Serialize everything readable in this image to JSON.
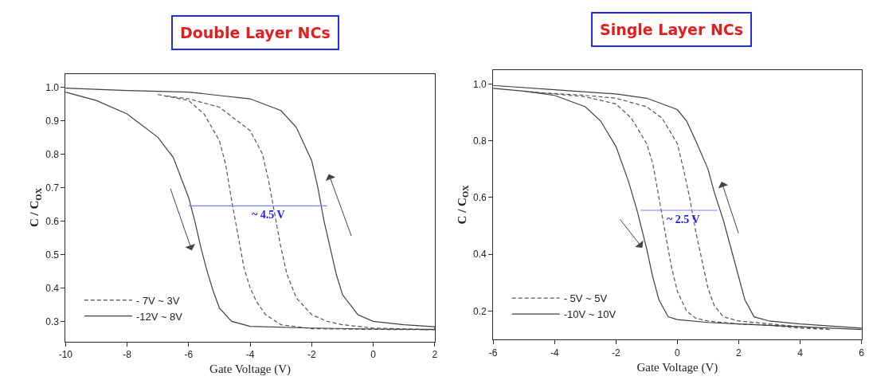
{
  "chart_data": [
    {
      "type": "line",
      "title": "Double Layer NCs",
      "xlabel": "Gate Voltage (V)",
      "ylabel": "C / C$_{OX}$",
      "xlim": [
        -10,
        2
      ],
      "xticks": [
        -10,
        -8,
        -6,
        -4,
        -2,
        0,
        2
      ],
      "ylim": [
        0.24,
        1.04
      ],
      "yticks": [
        {
          "value": 0.3,
          "label": "0.3"
        },
        {
          "value": 0.4,
          "label": "0.4"
        },
        {
          "value": 0.5,
          "label": "0.5"
        },
        {
          "value": 0.6,
          "label": "0.6"
        },
        {
          "value": 0.7,
          "label": "0.7"
        },
        {
          "value": 0.8,
          "label": "0.8"
        },
        {
          "value": 0.9,
          "label": "0.9"
        },
        {
          "value": 1.0,
          "label": "1.0"
        }
      ],
      "legend": "bottom left",
      "series": [
        {
          "name": "- 7V ~ 3V",
          "color": "#555555",
          "line_style": "dashed",
          "x": [
            -7,
            -6,
            -5.5,
            -5,
            -4.8,
            -4.6,
            -4.4,
            -4.2,
            -4,
            -3.8,
            -3.5,
            -3,
            -2,
            0,
            2,
            0,
            -1,
            -1.5,
            -2,
            -2.5,
            -2.8,
            -3,
            -3.2,
            -3.4,
            -3.6,
            -4,
            -5,
            -6,
            -6.8
          ],
          "values": [
            0.978,
            0.96,
            0.92,
            0.84,
            0.77,
            0.66,
            0.56,
            0.46,
            0.4,
            0.36,
            0.32,
            0.29,
            0.278,
            0.276,
            0.275,
            0.28,
            0.29,
            0.3,
            0.32,
            0.37,
            0.44,
            0.52,
            0.62,
            0.72,
            0.8,
            0.87,
            0.94,
            0.965,
            0.975
          ]
        },
        {
          "name": "-12V ~ 8V",
          "color": "#404040",
          "line_style": "solid",
          "x": [
            -10,
            -9,
            -8,
            -7,
            -6.5,
            -6,
            -5.8,
            -5.6,
            -5.4,
            -5.2,
            -5,
            -4.6,
            -4,
            -2,
            0,
            2,
            2,
            1,
            0,
            -0.5,
            -1,
            -1.2,
            -1.4,
            -1.6,
            -1.8,
            -2,
            -2.5,
            -3,
            -4,
            -6,
            -8,
            -10
          ],
          "values": [
            0.985,
            0.96,
            0.92,
            0.85,
            0.79,
            0.67,
            0.6,
            0.52,
            0.45,
            0.39,
            0.34,
            0.3,
            0.285,
            0.28,
            0.277,
            0.276,
            0.284,
            0.29,
            0.3,
            0.32,
            0.38,
            0.44,
            0.52,
            0.6,
            0.7,
            0.78,
            0.88,
            0.93,
            0.965,
            0.985,
            0.99,
            0.997
          ]
        },
        {
          "color": "#8080ff",
          "line_style": "solid",
          "x": [
            -6,
            -1.5
          ],
          "values": [
            0.645,
            0.645
          ]
        }
      ],
      "annotations": [
        {
          "text": "~ 4.5 V",
          "x": -3.4,
          "y": 0.645
        }
      ]
    },
    {
      "type": "line",
      "title": "Single Layer NCs",
      "xlabel": "Gate Voltage (V)",
      "ylabel": "C / C$_{OX}$",
      "xlim": [
        -6,
        6
      ],
      "xticks": [
        -6,
        -4,
        -2,
        0,
        2,
        4,
        6
      ],
      "ylim": [
        0.1,
        1.05
      ],
      "yticks": [
        {
          "value": 0.2,
          "label": "0.2"
        },
        {
          "value": 0.4,
          "label": "0.4"
        },
        {
          "value": 0.6,
          "label": "0.6"
        },
        {
          "value": 0.8,
          "label": "0.8"
        },
        {
          "value": 1.0,
          "label": "1.0"
        }
      ],
      "legend": "bottom left",
      "series": [
        {
          "name": "- 5V ~ 5V",
          "color": "#555555",
          "line_style": "dashed",
          "x": [
            -5,
            -3,
            -2,
            -1.5,
            -1,
            -0.8,
            -0.6,
            -0.4,
            -0.2,
            0,
            0.3,
            0.6,
            1,
            2,
            3,
            4,
            5,
            4,
            3,
            2,
            1.5,
            1.2,
            1,
            0.8,
            0.6,
            0.4,
            0.2,
            0,
            -0.5,
            -1,
            -2,
            -3,
            -4.8
          ],
          "values": [
            0.975,
            0.955,
            0.93,
            0.88,
            0.79,
            0.72,
            0.6,
            0.48,
            0.36,
            0.27,
            0.2,
            0.175,
            0.165,
            0.155,
            0.15,
            0.14,
            0.135,
            0.145,
            0.155,
            0.165,
            0.18,
            0.22,
            0.28,
            0.38,
            0.48,
            0.6,
            0.7,
            0.79,
            0.88,
            0.92,
            0.95,
            0.96,
            0.972
          ]
        },
        {
          "name": "-10V ~ 10V",
          "color": "#404040",
          "line_style": "solid",
          "x": [
            -6,
            -5,
            -4,
            -3,
            -2.5,
            -2,
            -1.6,
            -1.3,
            -1,
            -0.8,
            -0.6,
            -0.3,
            0,
            1,
            2,
            4,
            6,
            6,
            4,
            3,
            2.5,
            2.2,
            2,
            1.8,
            1.5,
            1.2,
            1,
            0.6,
            0.3,
            0,
            -1,
            -2,
            -4,
            -6
          ],
          "values": [
            0.985,
            0.975,
            0.96,
            0.92,
            0.87,
            0.78,
            0.66,
            0.55,
            0.42,
            0.32,
            0.24,
            0.18,
            0.17,
            0.16,
            0.155,
            0.145,
            0.135,
            0.14,
            0.155,
            0.165,
            0.18,
            0.24,
            0.32,
            0.4,
            0.52,
            0.62,
            0.7,
            0.8,
            0.87,
            0.91,
            0.95,
            0.965,
            0.98,
            0.995
          ]
        },
        {
          "color": "#8080ff",
          "line_style": "solid",
          "x": [
            -1.2,
            1.3
          ],
          "values": [
            0.555,
            0.555
          ]
        }
      ],
      "annotations": [
        {
          "text": "~ 2.5 V",
          "x": 0.2,
          "y": 0.555
        }
      ]
    }
  ]
}
